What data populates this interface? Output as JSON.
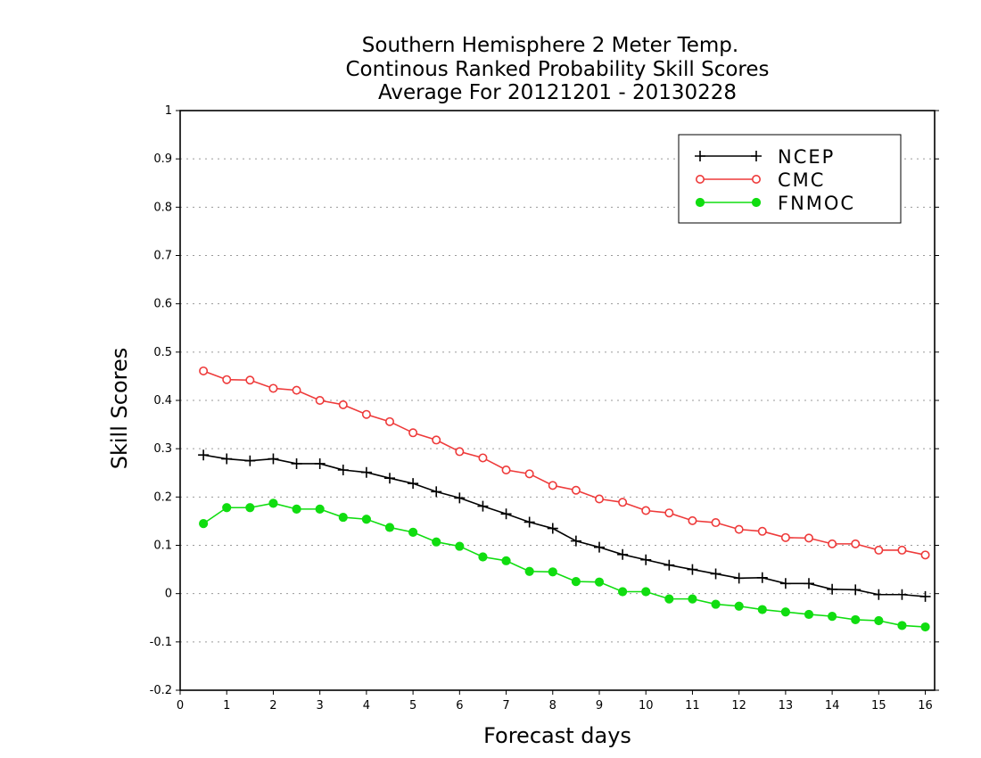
{
  "chart_data": {
    "type": "line",
    "title_lines": [
      "Southern Hemisphere 2 Meter Temp.",
      "Continous Ranked Probability Skill Scores",
      "Average For 20121201 - 20130228"
    ],
    "xlabel": "Forecast days",
    "ylabel": "Skill Scores",
    "xlim": [
      0,
      16.2
    ],
    "ylim": [
      -0.2,
      1
    ],
    "x_ticks": [
      0,
      1,
      2,
      3,
      4,
      5,
      6,
      7,
      8,
      9,
      10,
      11,
      12,
      13,
      14,
      15,
      16
    ],
    "y_ticks": [
      -0.2,
      -0.1,
      0,
      0.1,
      0.2,
      0.3,
      0.4,
      0.5,
      0.6,
      0.7,
      0.8,
      0.9,
      1
    ],
    "y_tick_labels": [
      "-0.2",
      "-0.1",
      "0",
      "0.1",
      "0.2",
      "0.3",
      "0.4",
      "0.5",
      "0.6",
      "0.7",
      "0.8",
      "0.9",
      "1"
    ],
    "grid": "horizontal dotted",
    "legend_position": "top-right",
    "x": [
      0.5,
      1,
      1.5,
      2,
      2.5,
      3,
      3.5,
      4,
      4.5,
      5,
      5.5,
      6,
      6.5,
      7,
      7.5,
      8,
      8.5,
      9,
      9.5,
      10,
      10.5,
      11,
      11.5,
      12,
      12.5,
      13,
      13.5,
      14,
      14.5,
      15,
      15.5,
      16
    ],
    "series": [
      {
        "name": "NCEP",
        "color": "#000000",
        "marker": "plus",
        "values": [
          0.287,
          0.279,
          0.275,
          0.279,
          0.269,
          0.269,
          0.256,
          0.251,
          0.239,
          0.228,
          0.211,
          0.198,
          0.181,
          0.165,
          0.148,
          0.135,
          0.109,
          0.096,
          0.081,
          0.07,
          0.059,
          0.05,
          0.041,
          0.032,
          0.033,
          0.021,
          0.021,
          0.009,
          0.008,
          -0.002,
          -0.002,
          -0.006
        ]
      },
      {
        "name": "CMC",
        "color": "#ee3a3a",
        "marker": "open-circle",
        "values": [
          0.461,
          0.443,
          0.442,
          0.425,
          0.421,
          0.4,
          0.391,
          0.371,
          0.356,
          0.333,
          0.318,
          0.294,
          0.281,
          0.256,
          0.248,
          0.224,
          0.214,
          0.196,
          0.189,
          0.172,
          0.167,
          0.151,
          0.147,
          0.133,
          0.129,
          0.116,
          0.115,
          0.103,
          0.103,
          0.09,
          0.09,
          0.08
        ]
      },
      {
        "name": "FNMOC",
        "color": "#10dd10",
        "marker": "filled-circle",
        "values": [
          0.145,
          0.178,
          0.178,
          0.187,
          0.175,
          0.175,
          0.158,
          0.154,
          0.137,
          0.127,
          0.107,
          0.098,
          0.076,
          0.068,
          0.046,
          0.045,
          0.025,
          0.024,
          0.004,
          0.004,
          -0.011,
          -0.011,
          -0.022,
          -0.026,
          -0.033,
          -0.038,
          -0.043,
          -0.047,
          -0.054,
          -0.056,
          -0.066,
          -0.069
        ]
      }
    ]
  }
}
